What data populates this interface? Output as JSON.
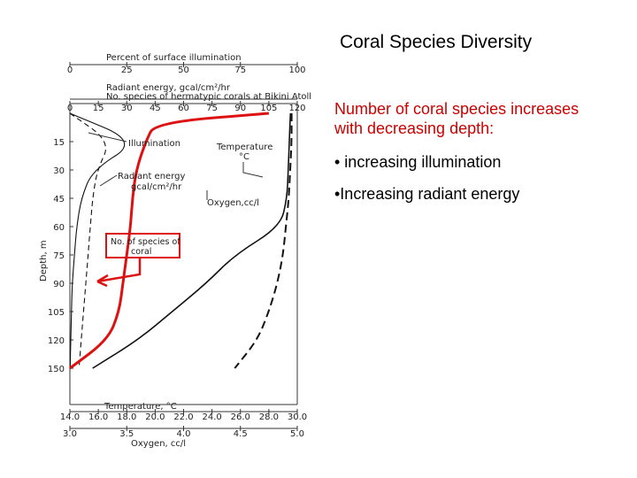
{
  "slide": {
    "title": "Coral Species Diversity",
    "intro": "Number of coral species increases with decreasing depth:",
    "bullets": [
      "• increasing illumination",
      "•Increasing radiant energy"
    ]
  },
  "chart_data": {
    "type": "line",
    "top_axes": [
      {
        "label": "Percent of surface illumination",
        "ticks": [
          "0",
          "25",
          "50",
          "75",
          "100"
        ],
        "range": [
          0,
          100
        ]
      },
      {
        "label": "Radiant energy, gcal/cm²/hr",
        "ticks": [],
        "range": null
      },
      {
        "label": "No. species of hermatypic corals at Bikini Atoll",
        "ticks": [
          "0",
          "15",
          "30",
          "45",
          "60",
          "75",
          "90",
          "105",
          "120"
        ],
        "range": [
          0,
          120
        ]
      }
    ],
    "bottom_axes": [
      {
        "label": "Temperature, °C",
        "ticks": [
          "14.0",
          "16.0",
          "18.0",
          "20.0",
          "22.0",
          "24.0",
          "26.0",
          "28.0",
          "30.0"
        ],
        "range": [
          14,
          30
        ]
      },
      {
        "label": "Oxygen, cc/l",
        "ticks": [
          "3.0",
          "3.5",
          "4.0",
          "4.5",
          "5.0"
        ],
        "range": [
          3,
          5
        ]
      }
    ],
    "y_axis": {
      "label": "Depth, m",
      "ticks": [
        "15",
        "30",
        "45",
        "60",
        "75",
        "90",
        "105",
        "120",
        "150"
      ],
      "inverted": true
    },
    "series": [
      {
        "name": "Illumination",
        "style": "solid-thin",
        "color": "#111111",
        "points": [
          [
            0,
            0
          ],
          [
            15,
            30
          ],
          [
            30,
            10
          ],
          [
            45,
            5
          ],
          [
            60,
            3
          ],
          [
            75,
            2
          ],
          [
            90,
            1
          ],
          [
            105,
            0.7
          ],
          [
            120,
            0.4
          ],
          [
            150,
            0.1
          ]
        ]
      },
      {
        "name": "Radiant energy",
        "style": "dashed-thin",
        "color": "#111111",
        "points": [
          [
            0,
            0
          ],
          [
            15,
            18
          ],
          [
            30,
            12
          ],
          [
            45,
            10
          ],
          [
            60,
            9
          ],
          [
            75,
            8
          ],
          [
            90,
            7
          ],
          [
            105,
            6
          ],
          [
            120,
            5
          ],
          [
            150,
            4
          ]
        ]
      },
      {
        "name": "Temperature",
        "style": "dashed-thick",
        "color": "#111111",
        "points": [
          [
            0,
            29.6
          ],
          [
            15,
            29.6
          ],
          [
            30,
            29.5
          ],
          [
            45,
            29.4
          ],
          [
            60,
            29.2
          ],
          [
            75,
            29.0
          ],
          [
            90,
            28.6
          ],
          [
            105,
            28.0
          ],
          [
            120,
            27.2
          ],
          [
            150,
            25.6
          ]
        ]
      },
      {
        "name": "Oxygen",
        "style": "solid",
        "color": "#111111",
        "points": [
          [
            0,
            4.94
          ],
          [
            15,
            4.93
          ],
          [
            30,
            4.92
          ],
          [
            45,
            4.91
          ],
          [
            60,
            4.85
          ],
          [
            75,
            4.45
          ],
          [
            90,
            4.2
          ],
          [
            105,
            3.9
          ],
          [
            120,
            3.6
          ],
          [
            150,
            3.2
          ]
        ]
      },
      {
        "name": "No. of species of coral",
        "style": "solid-thick",
        "color": "#dd1111",
        "points": [
          [
            0,
            105
          ],
          [
            5,
            45
          ],
          [
            15,
            40
          ],
          [
            30,
            35
          ],
          [
            45,
            33
          ],
          [
            60,
            32
          ],
          [
            75,
            30
          ],
          [
            90,
            28
          ],
          [
            105,
            26
          ],
          [
            120,
            20
          ],
          [
            150,
            0
          ]
        ]
      }
    ],
    "annotations": [
      {
        "text": "Illumination"
      },
      {
        "text": "Temperature",
        "text2": "°C"
      },
      {
        "text": "Radiant energy",
        "text2": "gcal/cm²/hr"
      },
      {
        "text": "Oxygen,cc/l"
      },
      {
        "text": "No. of species of",
        "text2": "coral"
      }
    ]
  }
}
